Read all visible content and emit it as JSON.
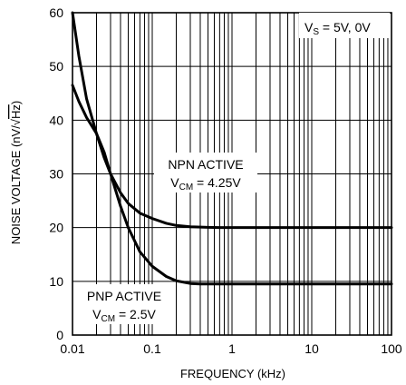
{
  "chart_data": {
    "type": "line",
    "xscale": "log",
    "xlim": [
      0.01,
      100
    ],
    "ylim": [
      0,
      60
    ],
    "grid": true,
    "xlabel": "FREQUENCY (kHz)",
    "ylabel_text": "NOISE VOLTAGE (nV/",
    "ylabel_unit": "Hz",
    "ylabel_close": ")",
    "x_ticks": [
      0.01,
      0.1,
      1,
      10,
      100
    ],
    "x_tick_labels": [
      "0.01",
      "0.1",
      "1",
      "10",
      "100"
    ],
    "y_ticks": [
      0,
      10,
      20,
      30,
      40,
      50,
      60
    ],
    "y_tick_labels": [
      "0",
      "10",
      "20",
      "30",
      "40",
      "50",
      "60"
    ],
    "condition": {
      "main": "V",
      "sub": "S",
      "rest": " = 5V, 0V"
    },
    "series": [
      {
        "x": [
          0.01,
          0.012,
          0.015,
          0.02,
          0.025,
          0.03,
          0.04,
          0.05,
          0.07,
          0.1,
          0.15,
          0.2,
          0.3,
          0.5,
          0.7,
          1,
          2,
          5,
          10,
          20,
          50,
          100
        ],
        "y": [
          60,
          52,
          44,
          37.5,
          33,
          30,
          26.5,
          24.5,
          22.7,
          21.7,
          20.8,
          20.4,
          20.15,
          20.05,
          20,
          20,
          20,
          20,
          20,
          20,
          20,
          20
        ]
      },
      {
        "x": [
          0.01,
          0.012,
          0.015,
          0.02,
          0.025,
          0.03,
          0.04,
          0.05,
          0.07,
          0.1,
          0.15,
          0.2,
          0.3,
          0.4,
          0.5,
          0.7,
          1,
          2,
          5,
          10,
          20,
          50,
          100
        ],
        "y": [
          46.5,
          43.5,
          40.5,
          37.5,
          34,
          30,
          24,
          20,
          15.5,
          12.8,
          10.9,
          10.1,
          9.6,
          9.5,
          9.5,
          9.5,
          9.5,
          9.5,
          9.5,
          9.5,
          9.5,
          9.5,
          9.5
        ]
      }
    ],
    "annotations": [
      {
        "line1": "NPN ACTIVE",
        "line2_main": "V",
        "line2_sub": "CM",
        "line2_rest": " = 4.25V"
      },
      {
        "line1": "PNP ACTIVE",
        "line2_main": "V",
        "line2_sub": "CM",
        "line2_rest": " = 2.5V"
      }
    ]
  }
}
